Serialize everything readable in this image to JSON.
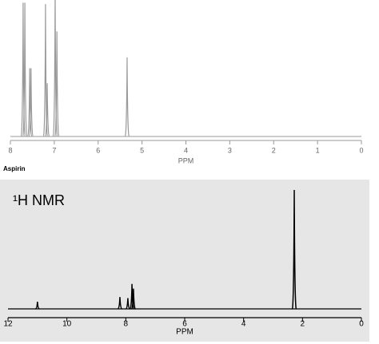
{
  "chart_data": [
    {
      "type": "spectrum",
      "xlabel": "PPM",
      "caption": "Aspirin",
      "x": [
        7.71,
        7.67,
        7.56,
        7.53,
        7.2,
        7.16,
        6.98,
        6.94,
        5.34
      ],
      "values": [
        98,
        98,
        50,
        50,
        97,
        39,
        110,
        77,
        58
      ],
      "xlim": [
        8,
        0
      ],
      "ylim": [
        0,
        100
      ],
      "xticks": [
        8,
        7,
        6,
        5,
        4,
        3,
        2,
        1,
        0
      ],
      "color": "#999999"
    },
    {
      "type": "spectrum",
      "title": "¹H NMR",
      "xlabel": "PPM",
      "x": [
        11.0,
        8.2,
        7.93,
        7.79,
        7.74,
        2.28
      ],
      "values": [
        6,
        10,
        9,
        21,
        17,
        100
      ],
      "xlim": [
        12,
        0
      ],
      "ylim": [
        0,
        100
      ],
      "xticks": [
        12,
        10,
        8,
        6,
        4,
        2,
        0
      ],
      "color": "#000000"
    }
  ]
}
